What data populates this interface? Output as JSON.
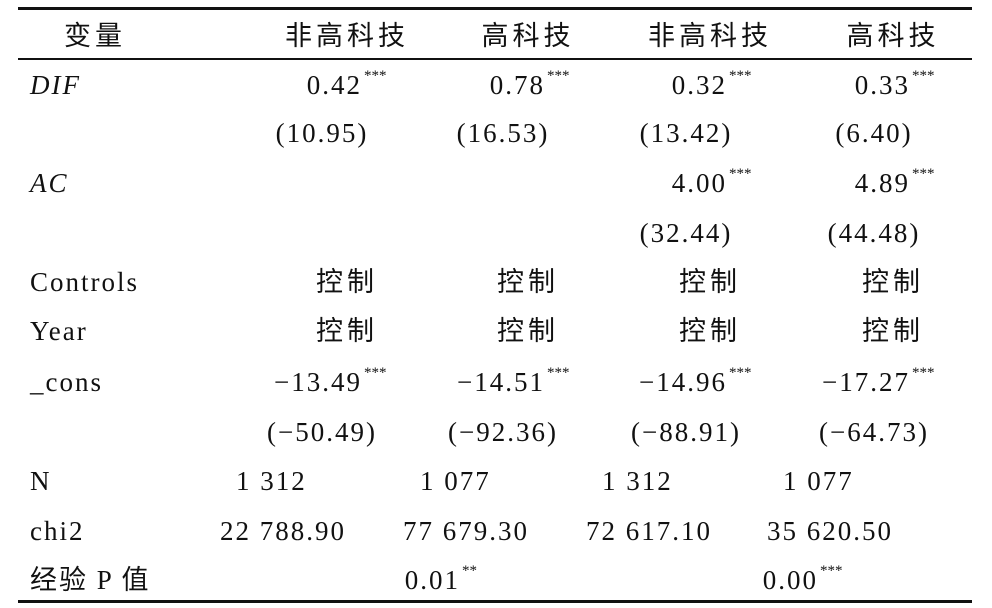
{
  "table": {
    "header": [
      "变量",
      "非高科技",
      "高科技",
      "非高科技",
      "高科技"
    ],
    "rows": [
      {
        "label": "DIF",
        "cells": [
          {
            "value": "0.42",
            "stars": "***"
          },
          {
            "value": "0.78",
            "stars": "***"
          },
          {
            "value": "0.32",
            "stars": "***"
          },
          {
            "value": "0.33",
            "stars": "***"
          }
        ]
      },
      {
        "label": null,
        "cells": [
          "(10.95)",
          "(16.53)",
          "(13.42)",
          "(6.40)"
        ]
      },
      {
        "label": "AC",
        "cells": [
          null,
          null,
          {
            "value": "4.00",
            "stars": "***"
          },
          {
            "value": "4.89",
            "stars": "***"
          }
        ]
      },
      {
        "label": null,
        "cells": [
          null,
          null,
          "(32.44)",
          "(44.48)"
        ]
      },
      {
        "label": "Controls",
        "cells": [
          "控制",
          "控制",
          "控制",
          "控制"
        ]
      },
      {
        "label": "Year",
        "cells": [
          "控制",
          "控制",
          "控制",
          "控制"
        ]
      },
      {
        "label": "_cons",
        "cells": [
          {
            "value": "−13.49",
            "stars": "***"
          },
          {
            "value": "−14.51",
            "stars": "***"
          },
          {
            "value": "−14.96",
            "stars": "***"
          },
          {
            "value": "−17.27",
            "stars": "***"
          }
        ]
      },
      {
        "label": null,
        "cells": [
          "(−50.49)",
          "(−92.36)",
          "(−88.91)",
          "(−64.73)"
        ]
      },
      {
        "label": "N",
        "cells": [
          "1 312",
          "1 077",
          "1 312",
          "1 077"
        ]
      },
      {
        "label": "chi2",
        "cells": [
          "22 788.90",
          "77 679.30",
          "72 617.10",
          "35 620.50"
        ]
      },
      {
        "label": "经验 P 值",
        "cells": [
          {
            "value": "0.01",
            "stars": "**"
          },
          {
            "value": "0.00",
            "stars": "***"
          }
        ]
      }
    ]
  }
}
